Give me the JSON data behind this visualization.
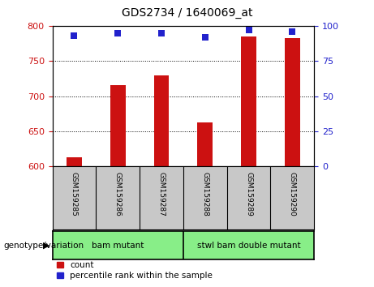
{
  "title": "GDS2734 / 1640069_at",
  "samples": [
    "GSM159285",
    "GSM159286",
    "GSM159287",
    "GSM159288",
    "GSM159289",
    "GSM159290"
  ],
  "count_values": [
    613,
    716,
    730,
    663,
    785,
    782
  ],
  "percentile_values": [
    93,
    95,
    95,
    92,
    97,
    96
  ],
  "ylim_left": [
    600,
    800
  ],
  "ylim_right": [
    0,
    100
  ],
  "yticks_left": [
    600,
    650,
    700,
    750,
    800
  ],
  "yticks_right": [
    0,
    25,
    50,
    75,
    100
  ],
  "bar_color": "#cc1111",
  "dot_color": "#2222cc",
  "group1_label": "bam mutant",
  "group2_label": "stwl bam double mutant",
  "group1_indices": [
    0,
    1,
    2
  ],
  "group2_indices": [
    3,
    4,
    5
  ],
  "group_area_color": "#88ee88",
  "tick_area_color": "#c8c8c8",
  "genotype_label": "genotype/variation",
  "legend_count_label": "count",
  "legend_percentile_label": "percentile rank within the sample",
  "bg_color": "#ffffff",
  "bar_width": 0.35,
  "dot_size": 40,
  "title_fontsize": 10,
  "axis_fontsize": 8,
  "label_fontsize": 7.5,
  "legend_fontsize": 7.5
}
